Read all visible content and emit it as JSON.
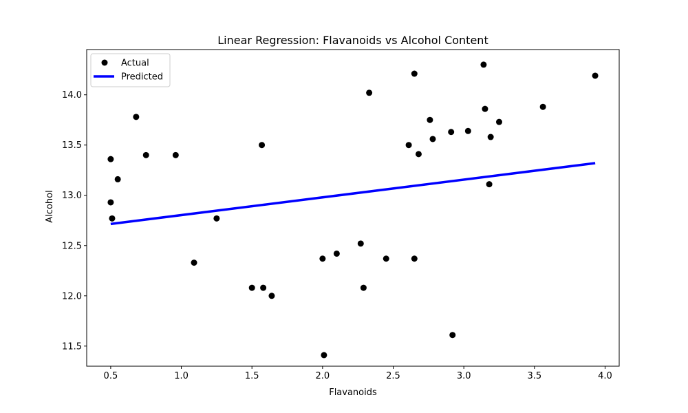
{
  "chart_data": {
    "type": "scatter",
    "title": "Linear Regression: Flavanoids vs Alcohol Content",
    "xlabel": "Flavanoids",
    "ylabel": "Alcohol",
    "xlim": [
      0.33,
      4.1
    ],
    "ylim": [
      11.3,
      14.45
    ],
    "xticks": [
      0.5,
      1.0,
      1.5,
      2.0,
      2.5,
      3.0,
      3.5,
      4.0
    ],
    "xtick_labels": [
      "0.5",
      "1.0",
      "1.5",
      "2.0",
      "2.5",
      "3.0",
      "3.5",
      "4.0"
    ],
    "yticks": [
      11.5,
      12.0,
      12.5,
      13.0,
      13.5,
      14.0
    ],
    "ytick_labels": [
      "11.5",
      "12.0",
      "12.5",
      "13.0",
      "13.5",
      "14.0"
    ],
    "legend_position": "top-left",
    "series": [
      {
        "name": "Actual",
        "kind": "scatter",
        "color": "#000000",
        "points": [
          [
            0.5,
            13.36
          ],
          [
            0.5,
            12.93
          ],
          [
            0.51,
            12.77
          ],
          [
            0.55,
            13.16
          ],
          [
            0.68,
            13.78
          ],
          [
            0.75,
            13.4
          ],
          [
            0.96,
            13.4
          ],
          [
            1.09,
            12.33
          ],
          [
            1.25,
            12.77
          ],
          [
            1.5,
            12.08
          ],
          [
            1.57,
            13.5
          ],
          [
            1.58,
            12.08
          ],
          [
            1.64,
            12.0
          ],
          [
            2.0,
            12.37
          ],
          [
            2.01,
            11.41
          ],
          [
            2.1,
            12.42
          ],
          [
            2.27,
            12.52
          ],
          [
            2.29,
            12.08
          ],
          [
            2.33,
            14.02
          ],
          [
            2.45,
            12.37
          ],
          [
            2.61,
            13.5
          ],
          [
            2.65,
            14.21
          ],
          [
            2.65,
            12.37
          ],
          [
            2.68,
            13.41
          ],
          [
            2.76,
            13.75
          ],
          [
            2.78,
            13.56
          ],
          [
            2.91,
            13.63
          ],
          [
            2.92,
            11.61
          ],
          [
            3.03,
            13.64
          ],
          [
            3.14,
            14.3
          ],
          [
            3.15,
            13.86
          ],
          [
            3.18,
            13.11
          ],
          [
            3.19,
            13.58
          ],
          [
            3.25,
            13.73
          ],
          [
            3.56,
            13.88
          ],
          [
            3.93,
            14.19
          ]
        ]
      },
      {
        "name": "Predicted",
        "kind": "line",
        "color": "#0000ff",
        "points": [
          [
            0.5,
            12.715
          ],
          [
            3.93,
            13.32
          ]
        ]
      }
    ]
  }
}
